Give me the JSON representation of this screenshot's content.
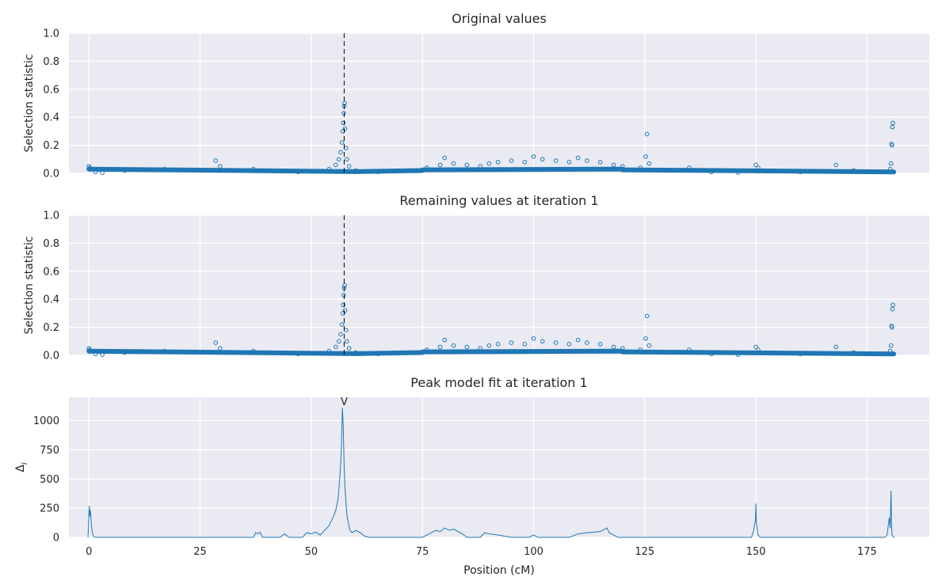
{
  "colors": {
    "accent": "#1f77b4",
    "panel_bg": "#eaeaf2",
    "grid": "#ffffff",
    "text": "#262626"
  },
  "shared_x": {
    "label": "Position (cM)",
    "ticks": [
      "0",
      "25",
      "50",
      "75",
      "100",
      "125",
      "150",
      "175"
    ],
    "range": [
      -4.5,
      189
    ],
    "peak_position": 57.4
  },
  "chart_data": [
    {
      "type": "scatter",
      "title": "Original values",
      "ylabel": "Selection statistic",
      "ylim": [
        0,
        1.0
      ],
      "y_ticks": [
        "0.0",
        "0.2",
        "0.4",
        "0.6",
        "0.8",
        "1.0"
      ],
      "grid": true,
      "marker": "open-circle",
      "points": [
        [
          0.0,
          0.05
        ],
        [
          0.2,
          0.04
        ],
        [
          0.5,
          0.03
        ],
        [
          1.5,
          0.01
        ],
        [
          3,
          0.005
        ],
        [
          8,
          0.02
        ],
        [
          17,
          0.03
        ],
        [
          28.5,
          0.09
        ],
        [
          29.5,
          0.05
        ],
        [
          37,
          0.03
        ],
        [
          47,
          0.01
        ],
        [
          52,
          0.015
        ],
        [
          54,
          0.03
        ],
        [
          55.5,
          0.06
        ],
        [
          56.2,
          0.1
        ],
        [
          56.6,
          0.15
        ],
        [
          56.9,
          0.22
        ],
        [
          57.1,
          0.3
        ],
        [
          57.2,
          0.36
        ],
        [
          57.3,
          0.43
        ],
        [
          57.4,
          0.48
        ],
        [
          57.5,
          0.5
        ],
        [
          57.6,
          0.32
        ],
        [
          57.8,
          0.18
        ],
        [
          58.0,
          0.1
        ],
        [
          58.5,
          0.05
        ],
        [
          60,
          0.02
        ],
        [
          65,
          0.01
        ],
        [
          72,
          0.02
        ],
        [
          76,
          0.04
        ],
        [
          79,
          0.06
        ],
        [
          80,
          0.11
        ],
        [
          82,
          0.07
        ],
        [
          85,
          0.06
        ],
        [
          88,
          0.05
        ],
        [
          90,
          0.07
        ],
        [
          92,
          0.08
        ],
        [
          95,
          0.09
        ],
        [
          98,
          0.08
        ],
        [
          100,
          0.12
        ],
        [
          102,
          0.1
        ],
        [
          105,
          0.09
        ],
        [
          108,
          0.08
        ],
        [
          110,
          0.11
        ],
        [
          112,
          0.09
        ],
        [
          115,
          0.08
        ],
        [
          118,
          0.06
        ],
        [
          120,
          0.05
        ],
        [
          124,
          0.04
        ],
        [
          125.5,
          0.28
        ],
        [
          125.2,
          0.12
        ],
        [
          126,
          0.07
        ],
        [
          130,
          0.02
        ],
        [
          135,
          0.04
        ],
        [
          140,
          0.01
        ],
        [
          146,
          0.005
        ],
        [
          150,
          0.06
        ],
        [
          150.5,
          0.04
        ],
        [
          160,
          0.01
        ],
        [
          168,
          0.06
        ],
        [
          172,
          0.02
        ],
        [
          178,
          0.01
        ],
        [
          180.2,
          0.03
        ],
        [
          180.4,
          0.07
        ],
        [
          180.5,
          0.21
        ],
        [
          180.6,
          0.2
        ],
        [
          180.7,
          0.33
        ],
        [
          180.8,
          0.36
        ]
      ],
      "baseline_segments": [
        [
          0,
          0.03,
          60,
          0.012
        ],
        [
          60,
          0.012,
          75,
          0.02
        ],
        [
          75,
          0.025,
          120,
          0.03
        ],
        [
          120,
          0.025,
          181,
          0.01
        ]
      ]
    },
    {
      "type": "scatter",
      "title": "Remaining values at iteration 1",
      "ylabel": "Selection statistic",
      "ylim": [
        0,
        1.0
      ],
      "y_ticks": [
        "0.0",
        "0.2",
        "0.4",
        "0.6",
        "0.8",
        "1.0"
      ],
      "grid": true,
      "marker": "open-circle",
      "points": [
        [
          0.0,
          0.05
        ],
        [
          0.2,
          0.04
        ],
        [
          0.5,
          0.03
        ],
        [
          1.5,
          0.01
        ],
        [
          3,
          0.005
        ],
        [
          8,
          0.02
        ],
        [
          17,
          0.03
        ],
        [
          28.5,
          0.09
        ],
        [
          29.5,
          0.05
        ],
        [
          37,
          0.03
        ],
        [
          47,
          0.01
        ],
        [
          52,
          0.015
        ],
        [
          54,
          0.03
        ],
        [
          55.5,
          0.06
        ],
        [
          56.2,
          0.1
        ],
        [
          56.6,
          0.15
        ],
        [
          56.9,
          0.22
        ],
        [
          57.1,
          0.3
        ],
        [
          57.2,
          0.36
        ],
        [
          57.3,
          0.43
        ],
        [
          57.4,
          0.48
        ],
        [
          57.5,
          0.5
        ],
        [
          57.6,
          0.32
        ],
        [
          57.8,
          0.18
        ],
        [
          58.0,
          0.1
        ],
        [
          58.5,
          0.05
        ],
        [
          60,
          0.02
        ],
        [
          65,
          0.01
        ],
        [
          72,
          0.02
        ],
        [
          76,
          0.04
        ],
        [
          79,
          0.06
        ],
        [
          80,
          0.11
        ],
        [
          82,
          0.07
        ],
        [
          85,
          0.06
        ],
        [
          88,
          0.05
        ],
        [
          90,
          0.07
        ],
        [
          92,
          0.08
        ],
        [
          95,
          0.09
        ],
        [
          98,
          0.08
        ],
        [
          100,
          0.12
        ],
        [
          102,
          0.1
        ],
        [
          105,
          0.09
        ],
        [
          108,
          0.08
        ],
        [
          110,
          0.11
        ],
        [
          112,
          0.09
        ],
        [
          115,
          0.08
        ],
        [
          118,
          0.06
        ],
        [
          120,
          0.05
        ],
        [
          124,
          0.04
        ],
        [
          125.5,
          0.28
        ],
        [
          125.2,
          0.12
        ],
        [
          126,
          0.07
        ],
        [
          130,
          0.02
        ],
        [
          135,
          0.04
        ],
        [
          140,
          0.01
        ],
        [
          146,
          0.005
        ],
        [
          150,
          0.06
        ],
        [
          150.5,
          0.04
        ],
        [
          160,
          0.01
        ],
        [
          168,
          0.06
        ],
        [
          172,
          0.02
        ],
        [
          178,
          0.01
        ],
        [
          180.2,
          0.03
        ],
        [
          180.4,
          0.07
        ],
        [
          180.5,
          0.21
        ],
        [
          180.6,
          0.2
        ],
        [
          180.7,
          0.33
        ],
        [
          180.8,
          0.36
        ]
      ],
      "baseline_segments": [
        [
          0,
          0.03,
          60,
          0.012
        ],
        [
          60,
          0.012,
          75,
          0.02
        ],
        [
          75,
          0.025,
          120,
          0.03
        ],
        [
          120,
          0.025,
          181,
          0.01
        ]
      ]
    },
    {
      "type": "line",
      "title": "Peak model fit at iteration 1",
      "ylabel": "Δ",
      "ylabel_sub": "i",
      "ylim": [
        0,
        1200
      ],
      "y_ticks": [
        "0",
        "250",
        "500",
        "750",
        "1000"
      ],
      "grid": true,
      "peak_marker": "V",
      "x": [
        -0.2,
        0.0,
        0.1,
        0.2,
        0.3,
        0.4,
        0.6,
        0.8,
        1.0,
        1.5,
        2.0,
        37,
        37.5,
        38,
        38.5,
        39,
        43,
        44,
        45,
        48,
        49,
        50,
        51,
        52,
        53,
        54,
        55,
        55.5,
        56,
        56.3,
        56.6,
        56.8,
        57.0,
        57.2,
        57.4,
        57.6,
        57.8,
        58.0,
        58.3,
        58.7,
        59.2,
        60,
        61,
        62,
        63,
        75,
        76,
        77,
        78,
        79,
        80,
        81,
        82,
        83,
        84,
        85,
        88,
        89,
        90,
        92,
        95,
        99,
        100,
        101,
        102,
        108,
        110,
        112,
        115,
        116.5,
        117,
        118,
        119,
        149,
        149.5,
        149.9,
        150.0,
        150.1,
        150.5,
        151,
        179,
        179.5,
        180.0,
        180.2,
        180.4,
        180.5,
        180.6,
        181.0,
        181.2
      ],
      "y": [
        0,
        220,
        270,
        180,
        230,
        200,
        80,
        40,
        10,
        0,
        0,
        0,
        40,
        30,
        45,
        0,
        0,
        30,
        0,
        0,
        40,
        30,
        45,
        20,
        60,
        100,
        180,
        230,
        320,
        450,
        620,
        800,
        1110,
        950,
        600,
        420,
        300,
        200,
        130,
        60,
        40,
        60,
        40,
        10,
        0,
        0,
        20,
        40,
        60,
        50,
        80,
        60,
        70,
        50,
        30,
        0,
        0,
        40,
        30,
        20,
        0,
        0,
        20,
        0,
        0,
        0,
        30,
        40,
        50,
        80,
        40,
        20,
        0,
        0,
        60,
        150,
        290,
        120,
        20,
        0,
        0,
        20,
        170,
        80,
        400,
        100,
        20,
        0,
        0
      ]
    }
  ]
}
